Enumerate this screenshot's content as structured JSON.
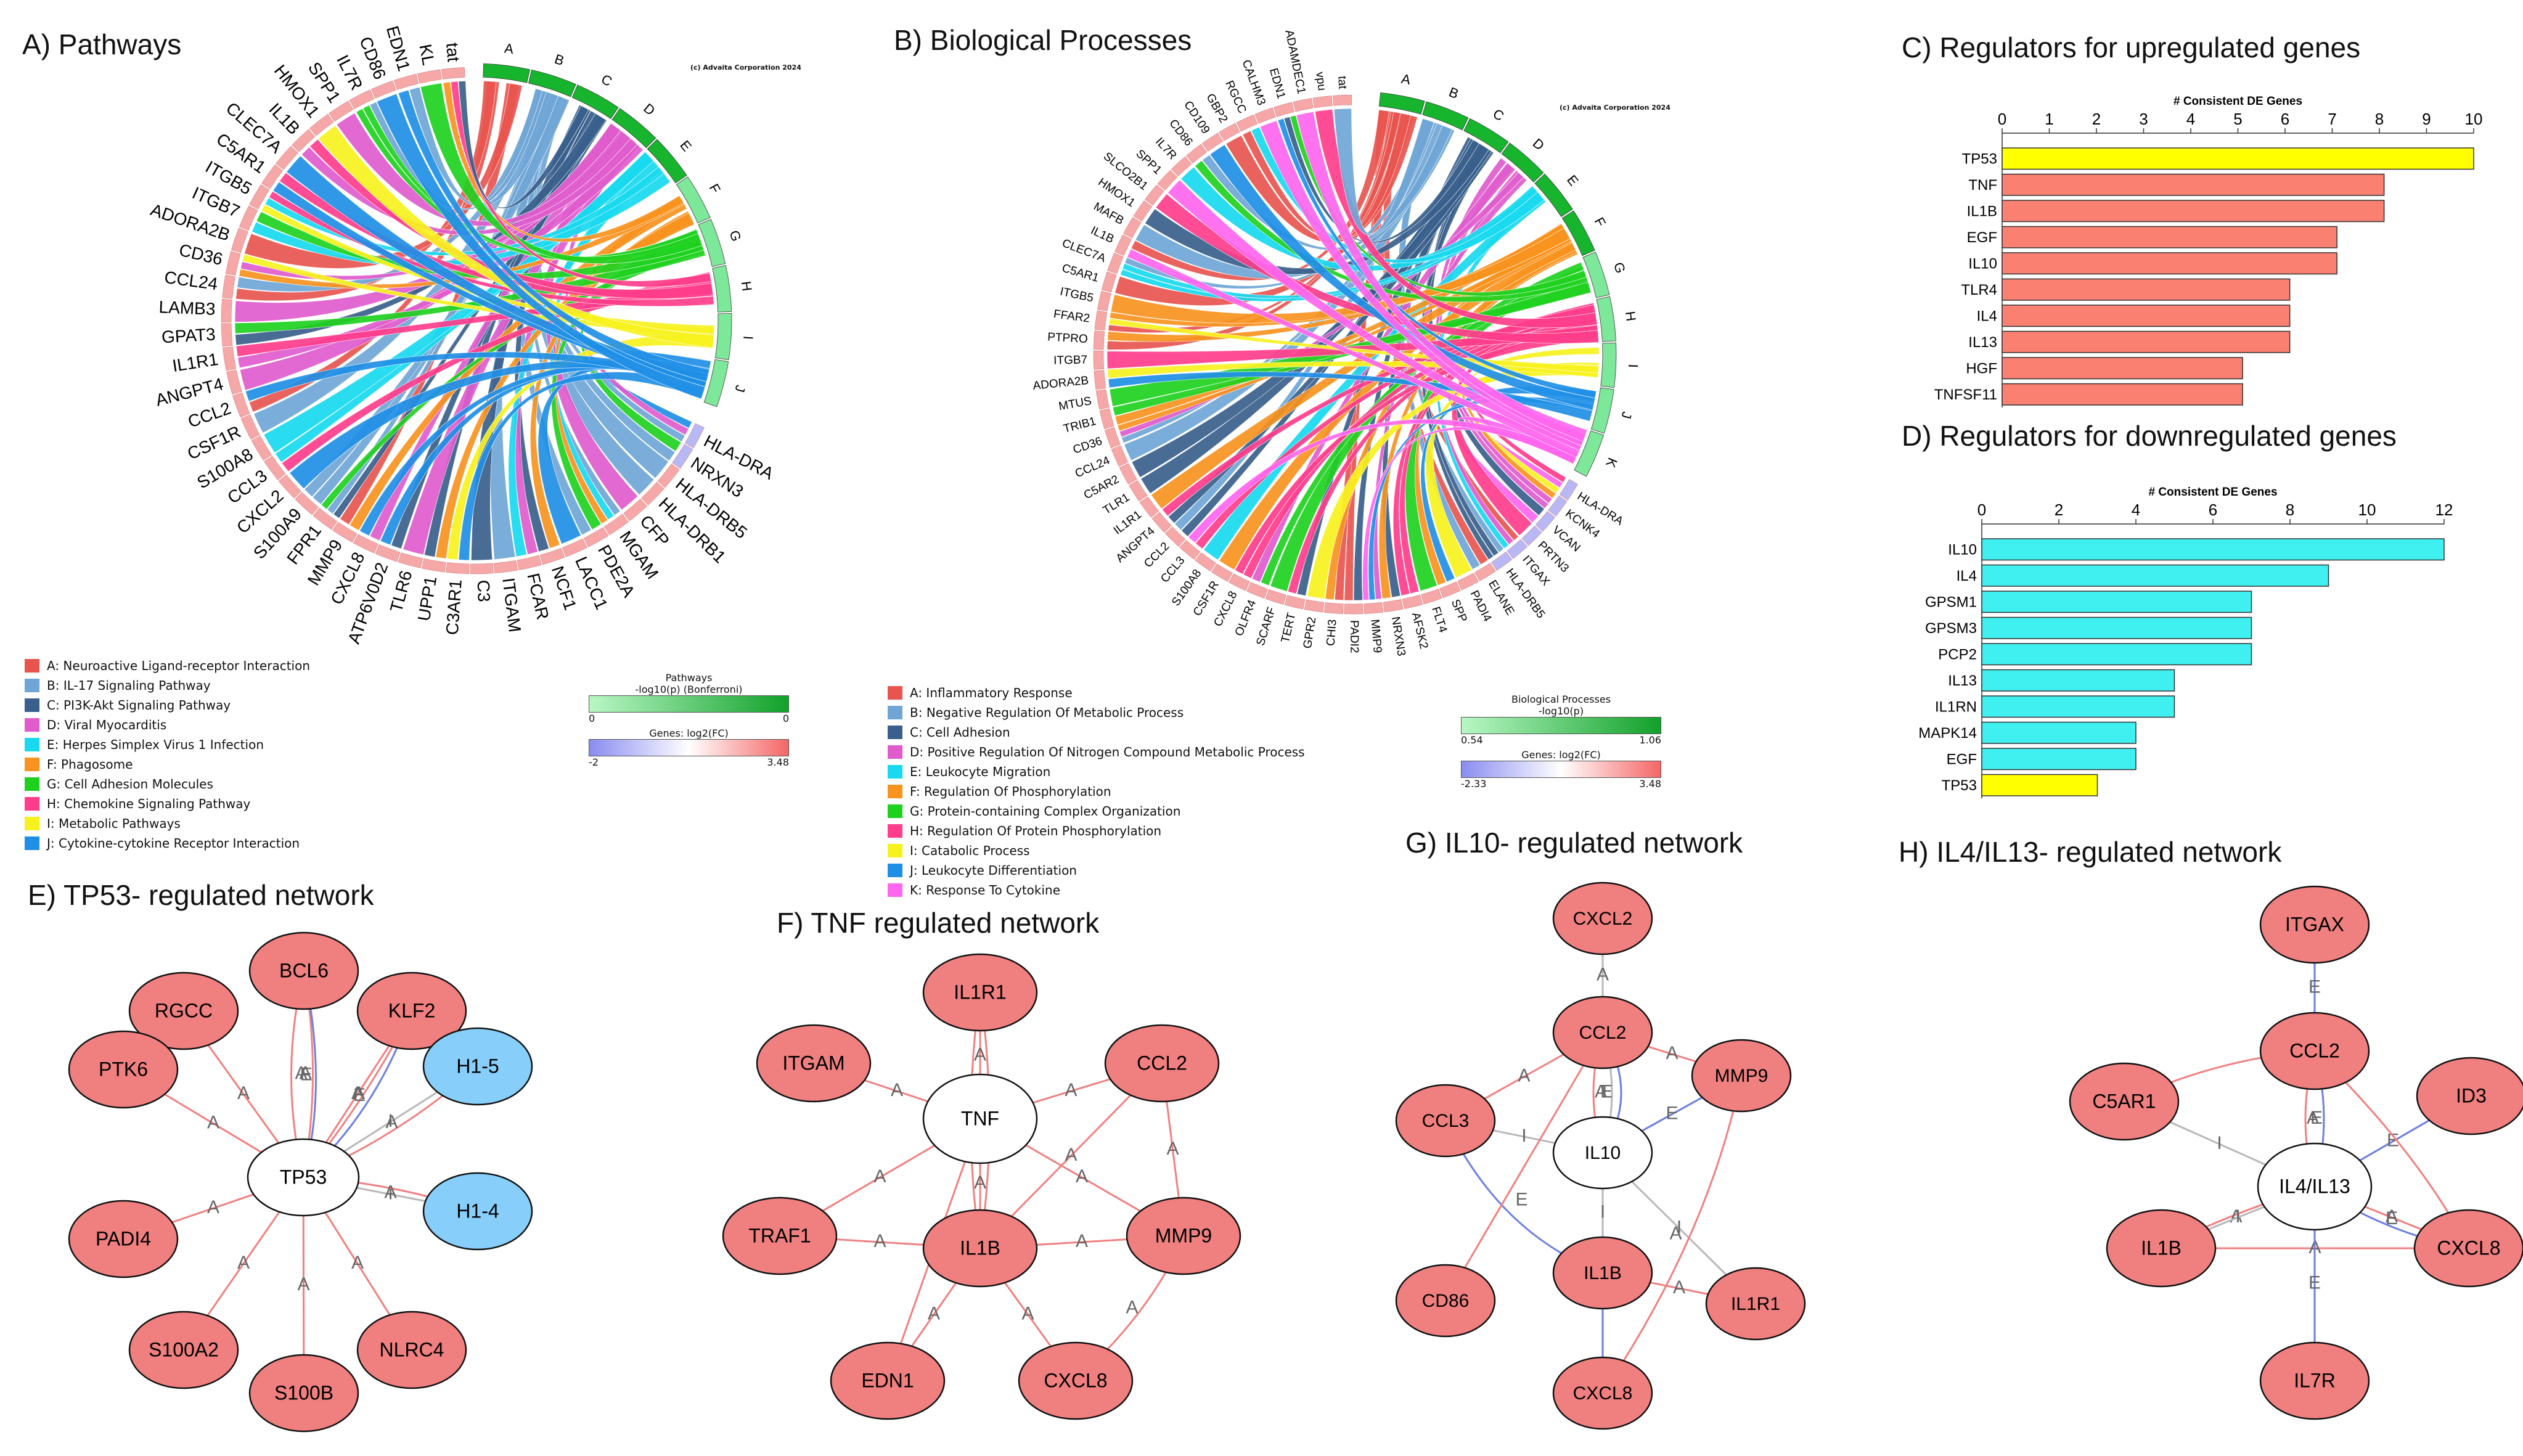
{
  "titles": {
    "a": "A) Pathways",
    "b": "B) Biological Processes",
    "c": "C) Regulators for upregulated genes",
    "d": "D) Regulators for downregulated genes",
    "e": "E) TP53- regulated network",
    "f": "F) TNF regulated network",
    "g": "G) IL10- regulated network",
    "h": "H) IL4/IL13- regulated network"
  },
  "colors": {
    "A": "#e8554f",
    "B": "#6fa6d6",
    "C": "#3a5f8c",
    "D": "#e05ccd",
    "E": "#18d9ef",
    "F": "#f7931e",
    "G": "#1fd11f",
    "H": "#ff3d8b",
    "I": "#f7f21e",
    "J": "#1f8fe6",
    "K": "#ff66ee",
    "node_red": "#f08080",
    "node_blue": "#87cefa",
    "edge_a": "#f08080",
    "edge_e": "#6b7fe0",
    "edge_i": "#b8b8b8",
    "bar_up": "#fa8072",
    "bar_down": "#40f0f0",
    "bar_tp53": "#ffff00"
  },
  "chord_a": {
    "credit": "(c) Advaita Corporation 2024",
    "categories": [
      "A",
      "B",
      "C",
      "D",
      "E",
      "F",
      "G",
      "H",
      "I",
      "J"
    ],
    "genes": [
      "HLA-DRA",
      "NRXN3",
      "HLA-DRB5",
      "HLA-DRB1",
      "CFP",
      "MGAM",
      "PDE2A",
      "LACC1",
      "NCF1",
      "FCAR",
      "ITGAM",
      "C3",
      "C3AR1",
      "UPP1",
      "TLR6",
      "ATP6V0D2",
      "CXCL8",
      "MMP9",
      "FPR1",
      "S100A9",
      "CXCL2",
      "CCL3",
      "S100A8",
      "CSF1R",
      "CCL2",
      "ANGPT4",
      "IL1R1",
      "GPAT3",
      "LAMB3",
      "CCL24",
      "CD36",
      "ADORA2B",
      "ITGB7",
      "ITGB5",
      "C5AR1",
      "CLEC7A",
      "IL1B",
      "HMOX1",
      "SPP1",
      "IL7R",
      "CD86",
      "EDN1",
      "KL",
      "tat"
    ],
    "legend": [
      "A: Neuroactive Ligand-receptor Interaction",
      "B: IL-17 Signaling Pathway",
      "C: PI3K-Akt Signaling Pathway",
      "D: Viral Myocarditis",
      "E: Herpes Simplex Virus 1 Infection",
      "F: Phagosome",
      "G: Cell Adhesion Molecules",
      "H: Chemokine Signaling Pathway",
      "I: Metabolic Pathways",
      "J: Cytokine-cytokine Receptor Interaction"
    ],
    "scale1_label": "Pathways",
    "scale1_sub": "-log10(p) (Bonferroni)",
    "scale1_min": "0",
    "scale1_max": "0",
    "scale2_label": "Genes: log2(FC)",
    "scale2_min": "-2",
    "scale2_max": "3.48"
  },
  "chord_b": {
    "credit": "(c) Advaita Corporation 2024",
    "categories": [
      "A",
      "B",
      "C",
      "D",
      "E",
      "F",
      "G",
      "H",
      "I",
      "J",
      "K"
    ],
    "genes": [
      "HLA-DRA",
      "KCNK4",
      "VCAN",
      "PRTN3",
      "ITGAX",
      "HLA-DRB5",
      "ELANE",
      "PADI4",
      "SPP",
      "FLT4",
      "AFSK2",
      "NRXN3",
      "MMP9",
      "PADI2",
      "CHI3",
      "GPR2",
      "TERT",
      "SCARF",
      "OLFR4",
      "CXCL8",
      "CSF1R",
      "S100A8",
      "CCL3",
      "CCL2",
      "ANGPT4",
      "IL1R1",
      "TLR1",
      "C5AR2",
      "CCL24",
      "CD36",
      "TRIB1",
      "MTUS",
      "ADORA2B",
      "ITGB7",
      "PTPRO",
      "FFAR2",
      "ITGB5",
      "C5AR1",
      "CLEC7A",
      "IL1B",
      "MAFB",
      "HMOX1",
      "SLCO2B1",
      "SPP1",
      "IL7R",
      "CD86",
      "CD109",
      "GBP2",
      "RGCC",
      "CALHM3",
      "EDN1",
      "ADAMDEC1",
      "vpu",
      "tat"
    ],
    "legend": [
      "A: Inflammatory Response",
      "B: Negative Regulation Of Metabolic Process",
      "C: Cell Adhesion",
      "D: Positive Regulation Of Nitrogen Compound Metabolic Process",
      "E: Leukocyte Migration",
      "F: Regulation Of Phosphorylation",
      "G: Protein-containing Complex Organization",
      "H: Regulation Of Protein Phosphorylation",
      "I: Catabolic Process",
      "J: Leukocyte Differentiation",
      "K: Response To Cytokine"
    ],
    "scale1_label": "Biological Processes",
    "scale1_sub": "-log10(p)",
    "scale1_min": "0.54",
    "scale1_max": "1.06",
    "scale2_label": "Genes: log2(FC)",
    "scale2_min": "-2.33",
    "scale2_max": "3.48"
  },
  "chart_data": [
    {
      "type": "bar",
      "orientation": "horizontal",
      "title": "# Consistent DE Genes",
      "categories": [
        "TP53",
        "TNF",
        "IL1B",
        "EGF",
        "IL10",
        "TLR4",
        "IL4",
        "IL13",
        "HGF",
        "TNFSF11"
      ],
      "values": [
        10,
        8.1,
        8.1,
        7.1,
        7.1,
        6.1,
        6.1,
        6.1,
        5.1,
        5.1
      ],
      "xlim": [
        0,
        10
      ],
      "ticks": [
        "0",
        "1",
        "2",
        "3",
        "4",
        "5",
        "6",
        "7",
        "8",
        "9",
        "10"
      ],
      "highlight": "TP53"
    },
    {
      "type": "bar",
      "orientation": "horizontal",
      "title": "# Consistent DE Genes",
      "categories": [
        "IL10",
        "IL4",
        "GPSM1",
        "GPSM3",
        "PCP2",
        "IL13",
        "IL1RN",
        "MAPK14",
        "EGF",
        "TP53"
      ],
      "values": [
        12,
        9,
        7,
        7,
        7,
        5,
        5,
        4,
        4,
        3
      ],
      "xlim": [
        0,
        12
      ],
      "ticks": [
        "0",
        "2",
        "4",
        "6",
        "8",
        "10",
        "12"
      ],
      "highlight": "TP53"
    }
  ],
  "networks": {
    "e": {
      "center": "TP53",
      "nodes": [
        "BCL6",
        "KLF2",
        "RGCC",
        "PTK6",
        "H1-5",
        "H1-4",
        "PADI4",
        "S100A2",
        "S100B",
        "NLRC4"
      ],
      "edge_labels": [
        "A",
        "A",
        "A",
        "E",
        "A",
        "E",
        "A",
        "A",
        "I",
        "A",
        "I",
        "A",
        "A",
        "A",
        "A",
        "A"
      ]
    },
    "f": {
      "center": "TNF",
      "nodes": [
        "IL1R1",
        "ITGAM",
        "CCL2",
        "TRAF1",
        "IL1B",
        "MMP9",
        "EDN1",
        "CXCL8"
      ],
      "edge_labels": [
        "A",
        "A",
        "A",
        "A",
        "A",
        "A",
        "A",
        "A",
        "A",
        "A",
        "A",
        "A",
        "A",
        "A",
        "A",
        "A"
      ]
    },
    "g": {
      "center": "IL10",
      "nodes": [
        "CXCL2",
        "CCL2",
        "MMP9",
        "CCL3",
        "IL1B",
        "CD86",
        "IL1R1",
        "CXCL8"
      ],
      "edge_labels": [
        "A",
        "A",
        "I",
        "E",
        "E",
        "I",
        "E",
        "I",
        "A",
        "A",
        "I",
        "A",
        "A"
      ]
    },
    "h": {
      "center": "IL4/IL13",
      "nodes": [
        "ITGAX",
        "CCL2",
        "C5AR1",
        "ID3",
        "IL1B",
        "CXCL8",
        "IL7R"
      ],
      "edge_labels": [
        "E",
        "A",
        "I",
        "E",
        "A",
        "E",
        "A",
        "I",
        "A",
        "E",
        "E"
      ]
    }
  }
}
